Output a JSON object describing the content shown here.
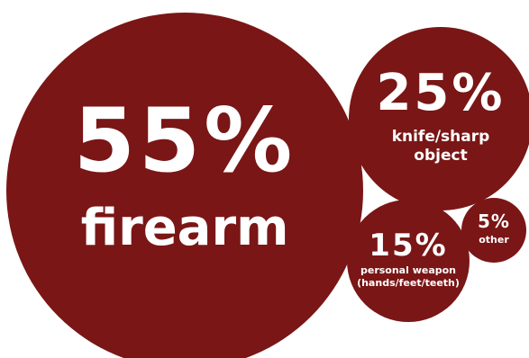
{
  "chart_data": {
    "type": "bubble",
    "title": "",
    "color": "#7a1616",
    "background": "#ffffff",
    "items": [
      {
        "value": 55,
        "value_label": "55%",
        "label_lines": [
          "firearm"
        ]
      },
      {
        "value": 25,
        "value_label": "25%",
        "label_lines": [
          "knife/sharp",
          "object"
        ]
      },
      {
        "value": 15,
        "value_label": "15%",
        "label_lines": [
          "personal weapon",
          "(hands/feet/teeth)"
        ]
      },
      {
        "value": 5,
        "value_label": "5%",
        "label_lines": [
          "other"
        ]
      }
    ]
  }
}
